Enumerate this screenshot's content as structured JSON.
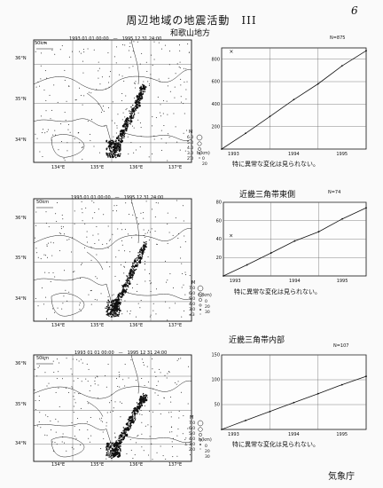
{
  "document": {
    "title": "周辺地域の地震活動　III",
    "page_number": "6",
    "footer": "気象庁"
  },
  "panels": [
    {
      "region": "和歌山地方",
      "period": "1993 01 01 00:00　—　1995 12 31 24:00",
      "scale_label": "50km",
      "lat_labels": [
        "36°N",
        "35°N",
        "34°N"
      ],
      "lon_labels": [
        "134°E",
        "135°E",
        "136°E",
        "137°E"
      ],
      "mag_legend_label": "M",
      "mag_values": [
        "6.0",
        "5.0",
        "4.0",
        "3.0",
        "2.0"
      ],
      "depth_legend_label": "h(km)",
      "depth_values": [
        "0",
        "20"
      ],
      "n_label": "N=875",
      "y_ticks": [
        "800",
        "600",
        "400",
        "200"
      ],
      "x_ticks": [
        "1993",
        "1994",
        "1995"
      ],
      "note": "特に異常な変化は見られない。"
    },
    {
      "region": "近畿三角帯東側",
      "period": "1993 01 01 00:00　—　1995 12 31 24:00",
      "scale_label": "50km",
      "lat_labels": [
        "36°N",
        "35°N",
        "34°N"
      ],
      "lon_labels": [
        "134°E",
        "135°E",
        "136°E",
        "137°E"
      ],
      "mag_legend_label": "M",
      "mag_values": [
        "7.0",
        "6.0",
        "5.0",
        "4.0",
        "3.0",
        "≤3"
      ],
      "depth_legend_label": "h(km)",
      "depth_values": [
        "0",
        "20",
        "30"
      ],
      "n_label": "N=74",
      "y_ticks": [
        "80",
        "60",
        "40",
        "20"
      ],
      "x_ticks": [
        "1993",
        "1994",
        "1995"
      ],
      "note": "特に異常な変化は見られない。"
    },
    {
      "region": "近畿三角帯内部",
      "period": "1993 01 01 00:00　—　1995 12 31 24:00",
      "scale_label": "50km",
      "lat_labels": [
        "36°N",
        "35°N",
        "34°N"
      ],
      "lon_labels": [
        "134°E",
        "135°E",
        "136°E",
        "137°E"
      ],
      "mag_legend_label": "M",
      "mag_values": [
        "7.0",
        "6.0",
        "5.0",
        "4.0",
        "3.0",
        "2.0"
      ],
      "depth_legend_label": "h(km)",
      "depth_values": [
        "0",
        "20",
        "30"
      ],
      "n_label": "N=107",
      "y_ticks": [
        "150",
        "100",
        "50"
      ],
      "x_ticks": [
        "1993",
        "1994",
        "1995"
      ],
      "note": "特に異常な変化は見られない。"
    }
  ],
  "chart_data": [
    {
      "type": "line",
      "ylim": [
        0,
        900
      ],
      "x": [
        "1993-01-01",
        "1993-07-01",
        "1994-01-01",
        "1994-07-01",
        "1995-01-01",
        "1995-07-01",
        "1995-12-31"
      ],
      "series": [
        {
          "values": [
            0,
            140,
            290,
            440,
            580,
            740,
            875
          ]
        }
      ],
      "annotations": [
        {
          "x": "1993-03-15",
          "y": 870
        }
      ]
    },
    {
      "type": "line",
      "ylim": [
        0,
        80
      ],
      "x": [
        "1993-01-01",
        "1993-07-01",
        "1994-01-01",
        "1994-07-01",
        "1995-01-01",
        "1995-07-01",
        "1995-12-31"
      ],
      "series": [
        {
          "values": [
            0,
            12,
            25,
            38,
            48,
            62,
            74
          ]
        }
      ],
      "annotations": [
        {
          "x": "1993-03-01",
          "y": 44
        }
      ]
    },
    {
      "type": "line",
      "ylim": [
        0,
        150
      ],
      "x": [
        "1993-01-01",
        "1993-07-01",
        "1994-01-01",
        "1994-07-01",
        "1995-01-01",
        "1995-07-01",
        "1995-12-31"
      ],
      "series": [
        {
          "values": [
            0,
            18,
            36,
            54,
            72,
            90,
            107
          ]
        }
      ],
      "annotations": []
    }
  ]
}
